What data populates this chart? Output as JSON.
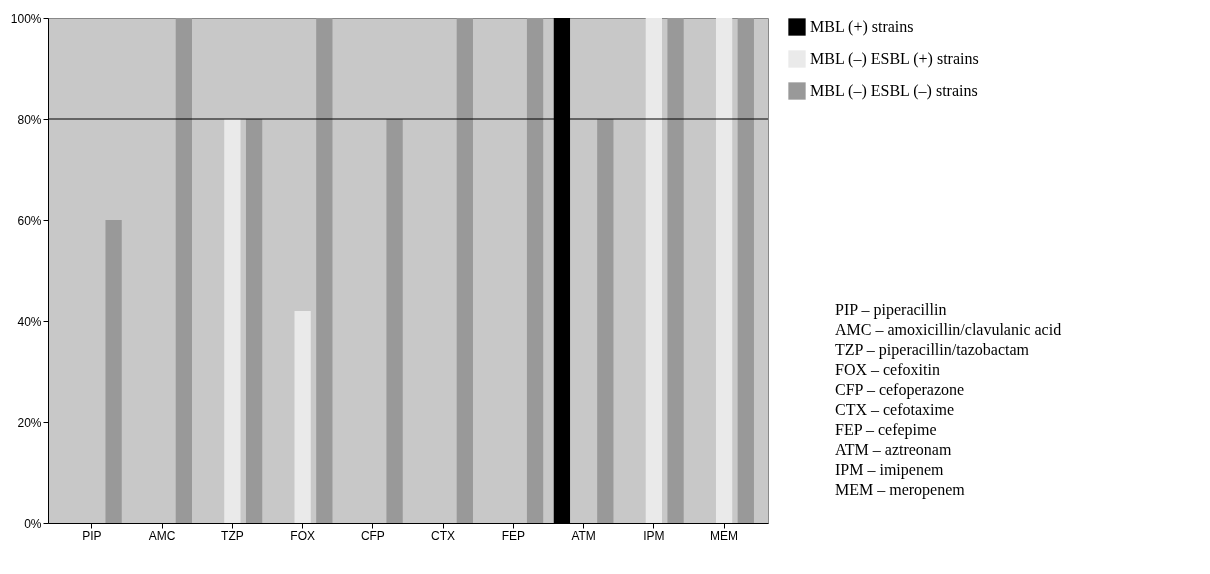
{
  "chart_data": {
    "type": "bar",
    "categories": [
      "PIP",
      "AMC",
      "TZP",
      "FOX",
      "CFP",
      "CTX",
      "FEP",
      "ATM",
      "IPM",
      "MEM"
    ],
    "series": [
      {
        "name": "MBL (+) strains",
        "color": "#000000",
        "values": [
          0,
          0,
          0,
          0,
          0,
          0,
          0,
          100,
          0,
          0
        ]
      },
      {
        "name": "MBL (–) ESBL (+) strains",
        "color": "#eaeaea",
        "values": [
          0,
          0,
          80,
          42,
          0,
          0,
          0,
          0,
          100,
          100
        ]
      },
      {
        "name": "MBL (–) ESBL (–) strains",
        "color": "#999999",
        "values": [
          60,
          100,
          80,
          100,
          80,
          100,
          100,
          80,
          100,
          100
        ]
      }
    ],
    "ylim": [
      0,
      100
    ],
    "yticks": [
      {
        "value": 0,
        "label": "0%"
      },
      {
        "value": 20,
        "label": "20%"
      },
      {
        "value": 40,
        "label": "40%"
      },
      {
        "value": 60,
        "label": "60%"
      },
      {
        "value": 80,
        "label": "80%"
      },
      {
        "value": 100,
        "label": "100%"
      }
    ],
    "grid": false,
    "legend": "top right",
    "ref_lines": [
      {
        "axis": "y",
        "value": 80,
        "color": "#000000"
      }
    ],
    "annotations": [
      "PIP – piperacillin",
      "AMC – amoxicillin/clavulanic acid",
      "TZP – piperacillin/tazobactam",
      "FOX – cefoxitin",
      "CFP – cefoperazone",
      "CTX – cefotaxime",
      "FEP – cefepime",
      "ATM – aztreonam",
      "IPM – imipenem",
      "MEM – meropenem"
    ]
  }
}
